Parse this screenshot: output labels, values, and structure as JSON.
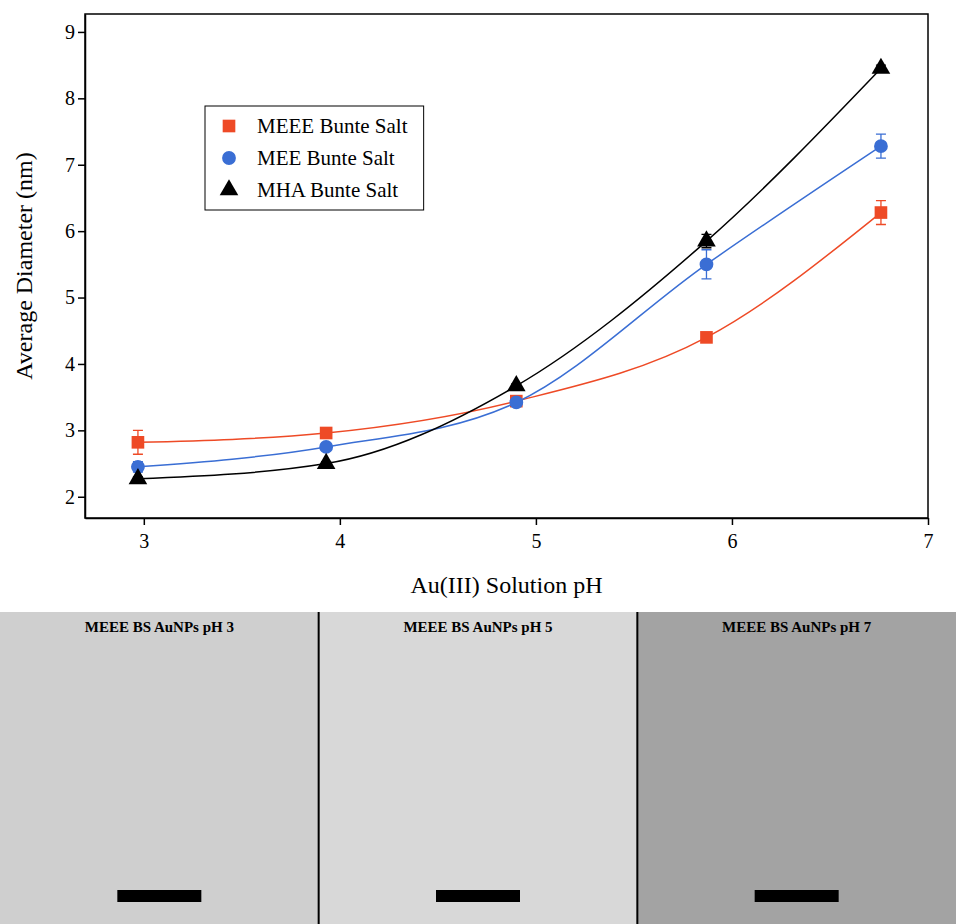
{
  "chart_data": {
    "type": "scatter",
    "x_label": "Au(III) Solution pH",
    "y_label": "Average Diameter (nm)",
    "x": [
      2.97,
      3.93,
      4.9,
      5.87,
      6.76
    ],
    "series": [
      {
        "name": "MEEE Bunte Salt",
        "color": "#ee4a26",
        "marker": "square",
        "line_style": "solid",
        "values": [
          2.82,
          2.96,
          3.44,
          4.4,
          6.28
        ],
        "errors": [
          0.18,
          0.05,
          0.08,
          0.05,
          0.18
        ]
      },
      {
        "name": "MEE Bunte Salt",
        "color": "#3a6ed4",
        "marker": "circle",
        "line_style": "solid",
        "values": [
          2.45,
          2.75,
          3.42,
          5.5,
          7.28
        ],
        "errors": [
          0.08,
          0.05,
          0.05,
          0.22,
          0.18
        ]
      },
      {
        "name": "MHA Bunte Salt",
        "color": "#000000",
        "marker": "triangle",
        "line_style": "solid",
        "values": [
          2.27,
          2.5,
          3.67,
          5.85,
          8.45
        ],
        "errors": [
          0.03,
          0.03,
          0.03,
          0.1,
          0.05
        ]
      }
    ],
    "xlim": [
      2.7,
      7.0
    ],
    "xticks": [
      3,
      4,
      5,
      6,
      7
    ],
    "ylim": [
      1.68,
      9.27
    ],
    "yticks": [
      2,
      3,
      4,
      5,
      6,
      7,
      8,
      9
    ],
    "legend": "upper left",
    "grid": false
  },
  "images": [
    {
      "title": "MEEE BS AuNPs pH 3"
    },
    {
      "title": "MEEE BS AuNPs pH 5"
    },
    {
      "title": "MEEE BS AuNPs pH 7"
    }
  ]
}
